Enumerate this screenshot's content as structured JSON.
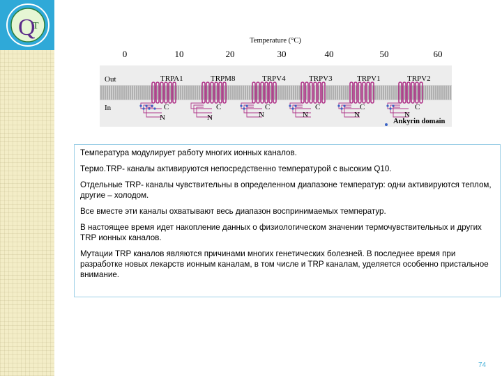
{
  "logo": {
    "letters": "Q",
    "inner": "T"
  },
  "figure": {
    "axis_title": "Temperature (°C)",
    "ticks": [
      "0",
      "10",
      "20",
      "30",
      "40",
      "50",
      "60"
    ],
    "side_out": "Out",
    "side_in": "In",
    "channels": [
      {
        "name": "TRPA1",
        "c": "C",
        "n": "N"
      },
      {
        "name": "TRPM8",
        "c": "C",
        "n": "N"
      },
      {
        "name": "TRPV4",
        "c": "C",
        "n": "N"
      },
      {
        "name": "TRPV3",
        "c": "C",
        "n": "N"
      },
      {
        "name": "TRPV1",
        "c": "C",
        "n": "N"
      },
      {
        "name": "TRPV2",
        "c": "C",
        "n": "N"
      }
    ],
    "legend": "Ankyrin domain",
    "colors": {
      "helix": "#b0378a",
      "membrane": "#d8d8d8",
      "ankyrin": "#3a63c4"
    }
  },
  "text": {
    "p1": "Температура модулирует работу многих ионных каналов.",
    "p2": "Термо.TRP- каналы активируются непосредственно температурой с высоким Q10.",
    "p3": "Отдельные TRP- каналы чувствительны в определенном диапазоне температур: одни активируются теплом, другие – холодом.",
    "p4": "Все вместе эти каналы охватывают весь диапазон воспринимаемых температур.",
    "p5": "В настоящее время идет накопление данных о физиологическом значении термочувствительных и других TRP ионных каналов.",
    "p6": "Мутации TRP каналов являются причинами многих генетических болезней. В последнее время при разработке новых лекарств ионным каналам, в том числе и TRP каналам, уделяется особенно пристальное внимание."
  },
  "page_number": "74"
}
